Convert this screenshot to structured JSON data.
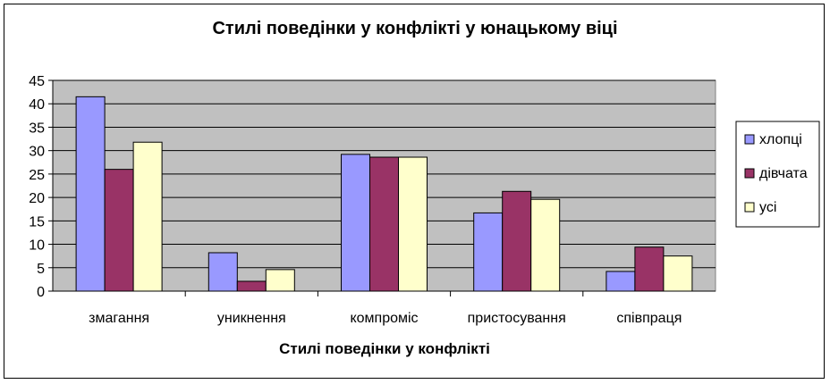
{
  "chart_data": {
    "type": "bar",
    "title": "Стилі поведінки у конфлікті у юнацькому віці",
    "xlabel": "Стилі поведінки у конфлікті",
    "ylabel": "",
    "ylim": [
      0,
      45
    ],
    "ytick_step": 5,
    "grid": true,
    "legend_position": "right",
    "categories": [
      "змагання",
      "уникнення",
      "компроміс",
      "пристосування",
      "співпраця"
    ],
    "series": [
      {
        "name": "хлопці",
        "color": "#9999ff",
        "values": [
          41.5,
          8.2,
          29.2,
          16.7,
          4.2
        ]
      },
      {
        "name": "дівчата",
        "color": "#993366",
        "values": [
          26.0,
          2.1,
          28.6,
          21.3,
          9.4
        ]
      },
      {
        "name": "усі",
        "color": "#ffffcc",
        "values": [
          31.8,
          4.6,
          28.6,
          19.6,
          7.5
        ]
      }
    ],
    "plot_background": "#c0c0c0"
  }
}
